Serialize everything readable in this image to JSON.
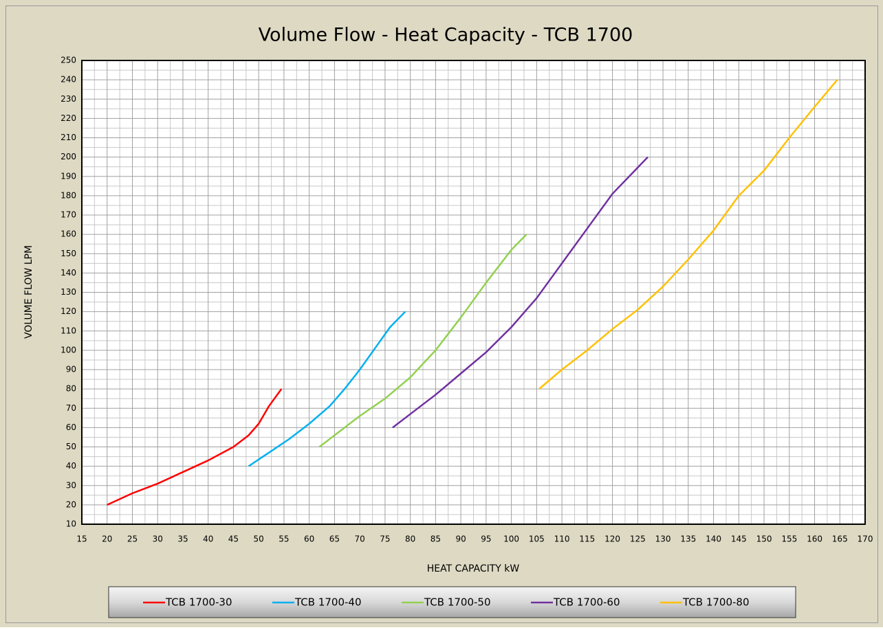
{
  "chart_data": {
    "type": "line",
    "title": "Volume Flow - Heat  Capacity - TCB 1700",
    "x_label": "HEAT CAPACITY kW",
    "y_label": "VOLUME FLOW LPM",
    "xlim": [
      15,
      170
    ],
    "xticks": [
      15,
      20,
      25,
      30,
      35,
      40,
      45,
      50,
      55,
      60,
      65,
      70,
      75,
      80,
      85,
      90,
      95,
      100,
      105,
      110,
      115,
      120,
      125,
      130,
      135,
      140,
      145,
      150,
      155,
      160,
      165,
      170
    ],
    "ylim": [
      10,
      250
    ],
    "yticks": [
      10,
      20,
      30,
      40,
      50,
      60,
      70,
      80,
      90,
      100,
      110,
      120,
      130,
      140,
      150,
      160,
      170,
      180,
      190,
      200,
      210,
      220,
      230,
      240,
      250
    ],
    "grid": true,
    "legend": "bottom",
    "series": [
      {
        "name": "TCB 1700-30",
        "color": "#ff0000",
        "x": [
          20,
          25,
          30,
          35,
          40,
          45,
          48,
          50,
          52,
          54.5
        ],
        "values": [
          20,
          26,
          31,
          37,
          43,
          50,
          56,
          62,
          71,
          80
        ]
      },
      {
        "name": "TCB 1700-40",
        "color": "#00b0f0",
        "x": [
          48,
          52,
          56,
          60,
          64,
          67,
          70,
          73,
          76,
          79
        ],
        "values": [
          40,
          47,
          54,
          62,
          71,
          80,
          90,
          101,
          112,
          120
        ]
      },
      {
        "name": "TCB 1700-50",
        "color": "#92d050",
        "x": [
          62,
          66,
          70,
          75,
          80,
          85,
          90,
          95,
          100,
          103
        ],
        "values": [
          50,
          58,
          66,
          75,
          86,
          100,
          117,
          135,
          152,
          160
        ]
      },
      {
        "name": "TCB 1700-60",
        "color": "#7030a0",
        "x": [
          76.5,
          80,
          85,
          90,
          95,
          100,
          105,
          110,
          115,
          120,
          127
        ],
        "values": [
          60,
          67,
          77,
          88,
          99,
          112,
          127,
          145,
          163,
          181,
          200
        ]
      },
      {
        "name": "TCB 1700-80",
        "color": "#ffc000",
        "x": [
          105.5,
          110,
          115,
          120,
          125,
          130,
          135,
          140,
          145,
          150,
          155,
          160,
          164.5
        ],
        "values": [
          80,
          90,
          100,
          111,
          121,
          133,
          147,
          162,
          180,
          193,
          210,
          226,
          240
        ]
      }
    ]
  }
}
